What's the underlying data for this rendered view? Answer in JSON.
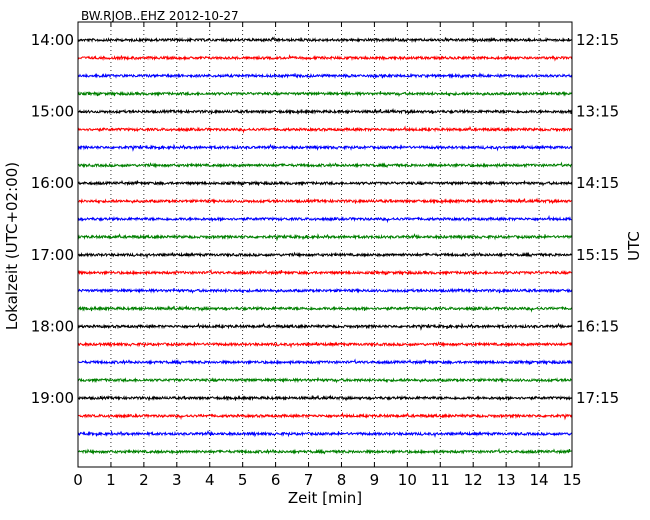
{
  "chart_data": {
    "type": "line",
    "title": "BW.RJOB..EHZ 2012-10-27",
    "xlabel": "Zeit  [min]",
    "ylabel_left": "Lokalzeit (UTC+02:00)",
    "ylabel_right": "UTC",
    "xlim": [
      0,
      15
    ],
    "x_ticks": [
      0,
      1,
      2,
      3,
      4,
      5,
      6,
      7,
      8,
      9,
      10,
      11,
      12,
      13,
      14,
      15
    ],
    "grid": "vertical dotted at each minute",
    "trace_start_minutes_local": [
      840,
      855,
      870,
      885,
      900,
      915,
      930,
      945,
      960,
      975,
      990,
      1005,
      1020,
      1035,
      1050,
      1065,
      1080,
      1095,
      1110,
      1125,
      1140,
      1155,
      1170,
      1185
    ],
    "trace_colors": [
      "#000000",
      "#ff0000",
      "#0000ff",
      "#008000"
    ],
    "y_ticks_left": [
      {
        "minutes": 840,
        "label": "14:00"
      },
      {
        "minutes": 900,
        "label": "15:00"
      },
      {
        "minutes": 960,
        "label": "16:00"
      },
      {
        "minutes": 1020,
        "label": "17:00"
      },
      {
        "minutes": 1080,
        "label": "18:00"
      },
      {
        "minutes": 1140,
        "label": "19:00"
      }
    ],
    "y_ticks_right": [
      {
        "minutes": 840,
        "label": "12:15"
      },
      {
        "minutes": 900,
        "label": "13:15"
      },
      {
        "minutes": 960,
        "label": "14:15"
      },
      {
        "minutes": 1020,
        "label": "15:15"
      },
      {
        "minutes": 1080,
        "label": "16:15"
      },
      {
        "minutes": 1140,
        "label": "17:15"
      }
    ]
  }
}
